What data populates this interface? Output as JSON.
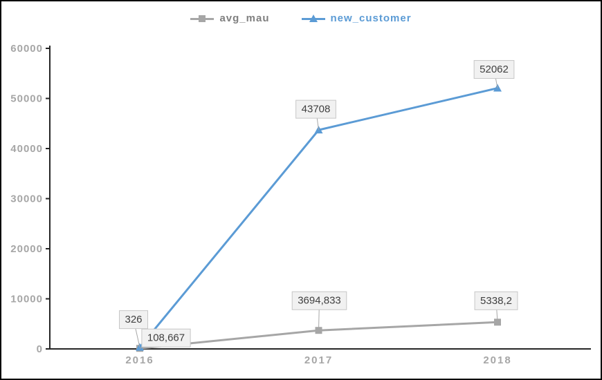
{
  "chart_data": {
    "type": "line",
    "title": "",
    "xlabel": "",
    "ylabel": "",
    "categories": [
      "2016",
      "2017",
      "2018"
    ],
    "yticks": [
      "0",
      "10000",
      "20000",
      "30000",
      "40000",
      "50000",
      "60000"
    ],
    "ylim": [
      0,
      60000
    ],
    "ytick_step": 10000,
    "grid": false,
    "legend_position": "top",
    "series": [
      {
        "name": "avg_mau",
        "color": "#a6a6a6",
        "label_text_color": "#7f7f7f",
        "marker": "square",
        "values": [
          108.667,
          3694.833,
          5338.2
        ],
        "labels": [
          "108,667",
          "3694,833",
          "5338,2"
        ],
        "label_offsets": [
          [
            38,
            -15
          ],
          [
            1,
            -43
          ],
          [
            -2,
            -31
          ]
        ]
      },
      {
        "name": "new_customer",
        "color": "#5b9bd5",
        "label_text_color": "#5b9bd5",
        "marker": "triangle",
        "values": [
          326,
          43708,
          52062
        ],
        "labels": [
          "326",
          "43708",
          "52062"
        ],
        "label_offsets": [
          [
            -9,
            -40
          ],
          [
            -4,
            -30
          ],
          [
            -5,
            -27
          ]
        ]
      }
    ],
    "style": {
      "axis_color": "#262626",
      "tick_label_color": "#a6a6a6",
      "data_label_bg": "#f1f1f1",
      "data_label_border": "#c6c6c6",
      "data_label_text": "#404040",
      "connector_color": "#a6a6a6"
    }
  }
}
